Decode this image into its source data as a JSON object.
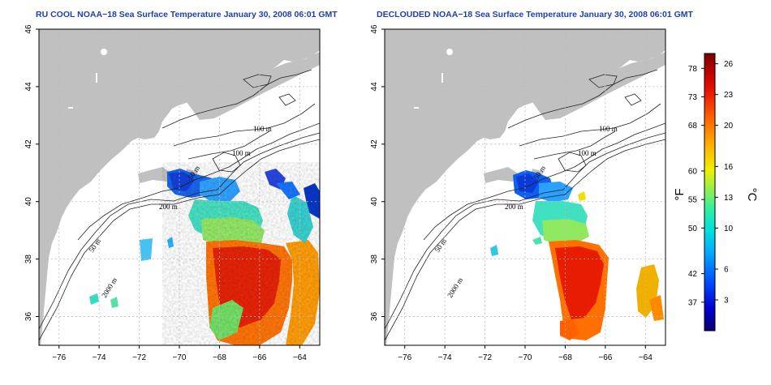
{
  "panels": [
    {
      "id": "left",
      "title": "RU COOL NOAA−18 Sea Surface Temperature January 30, 2008 06:01 GMT",
      "contour_labels": [
        "100 m",
        "100 m",
        "50 m",
        "200 m",
        "50 m",
        "2000 m"
      ]
    },
    {
      "id": "right",
      "title": "DECLOUDED NOAA−18 Sea Surface Temperature January 30, 2008 06:01 GMT",
      "contour_labels": [
        "100 m",
        "100 m",
        "50 m",
        "200 m",
        "50 m",
        "2000 m"
      ]
    }
  ],
  "axes": {
    "x_ticks": [
      "−76",
      "−74",
      "−72",
      "−70",
      "−68",
      "−66",
      "−64"
    ],
    "y_ticks": [
      "46",
      "44",
      "42",
      "40",
      "38",
      "36"
    ],
    "lon_range": [
      -77,
      -63
    ],
    "lat_range": [
      35,
      46
    ]
  },
  "colorbar": {
    "unit_left": "°F",
    "unit_right": "°C",
    "fahrenheit_ticks": [
      "78",
      "73",
      "68",
      "60",
      "55",
      "50",
      "42",
      "37"
    ],
    "celsius_ticks": [
      "26",
      "23",
      "20",
      "16",
      "13",
      "10",
      "6",
      "3"
    ],
    "celsius_range": [
      0,
      27
    ],
    "colors": [
      "#08006e",
      "#0000d0",
      "#0050ff",
      "#00a8ff",
      "#00e0e0",
      "#30f0a0",
      "#a0f040",
      "#f0f000",
      "#ffb000",
      "#ff6000",
      "#e81000",
      "#b00000",
      "#780000"
    ]
  },
  "colors": {
    "land": "#c0c0c0",
    "ocean_no_data": "#ffffff",
    "grid": "#bbbbbb",
    "title": "#1f3fb0"
  }
}
